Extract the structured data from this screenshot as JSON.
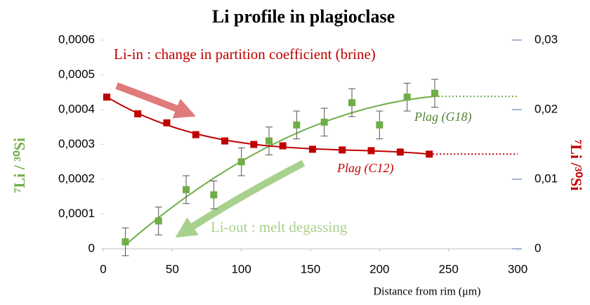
{
  "chart_data": {
    "type": "scatter",
    "title": "Li profile in plagioclase",
    "x_label": "Distance from rim (μm)",
    "y_label": "⁷Li / ³⁰Si",
    "y2_label": "⁷Li /³⁰Si",
    "xlim": [
      0,
      300
    ],
    "xticks": [
      0,
      50,
      100,
      150,
      200,
      250,
      300
    ],
    "ylim": [
      0,
      0.0006
    ],
    "yticks": [
      0,
      {
        "value": 0.0001,
        "label": "0,0001"
      },
      {
        "value": 0.0002,
        "label": "0,0002"
      },
      {
        "value": 0.0003,
        "label": "0,0003"
      },
      {
        "value": 0.0004,
        "label": "0,0004"
      },
      {
        "value": 0.0005,
        "label": "0,0005"
      },
      {
        "value": 0.0006,
        "label": "0,0006"
      }
    ],
    "y2lim": [
      0,
      0.03
    ],
    "y2ticks": [
      0,
      {
        "value": 0.01,
        "label": "0,01"
      },
      {
        "value": 0.02,
        "label": "0,02"
      },
      {
        "value": 0.03,
        "label": "0,03"
      }
    ],
    "series": [
      {
        "name": "Plag (G18)",
        "color": "#70ad47",
        "trend_order": 2,
        "x": [
          16,
          40,
          60,
          80,
          100,
          120,
          140,
          160,
          180,
          200,
          220,
          240
        ],
        "values": [
          2e-05,
          8e-05,
          0.00017,
          0.000155,
          0.00025,
          0.00031,
          0.000356,
          0.000364,
          0.00042,
          0.000356,
          0.000436,
          0.000447
        ],
        "errors": [
          4e-05,
          4e-05,
          4e-05,
          4e-05,
          4e-05,
          4e-05,
          4e-05,
          4e-05,
          4e-05,
          4e-05,
          4e-05,
          4e-05
        ]
      },
      {
        "name": "Plag (C12)",
        "color": "#c00000",
        "axis": "y2",
        "trend_order": 3,
        "x": [
          2.5,
          25,
          46,
          67,
          88,
          109,
          130,
          151.5,
          173,
          194,
          215,
          236
        ],
        "values": [
          0.0218,
          0.0194,
          0.0181,
          0.0164,
          0.0155,
          0.015,
          0.0148,
          0.0143,
          0.0142,
          0.0141,
          0.0139,
          0.0136
        ]
      }
    ],
    "annotations": [
      "Li-in : change in partition coefficient (brine)",
      "Li-out : melt degassing"
    ]
  }
}
